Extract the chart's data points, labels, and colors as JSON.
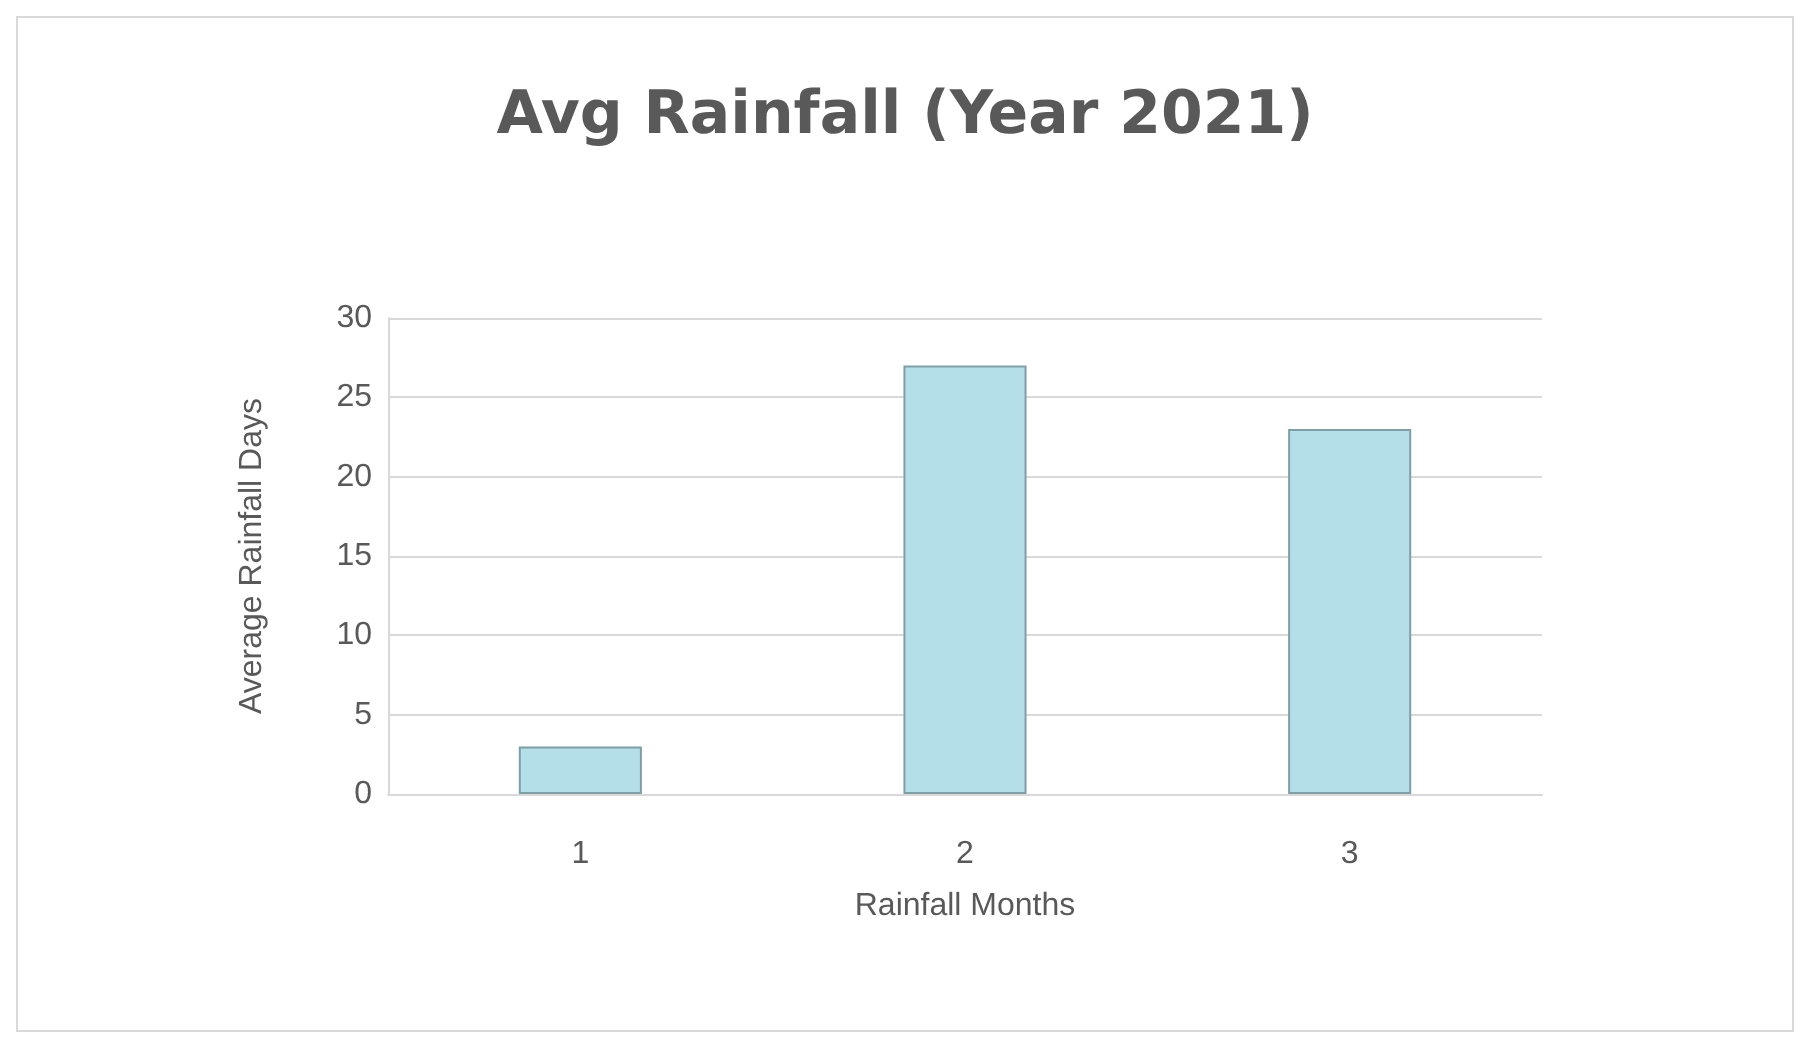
{
  "chart_data": {
    "type": "bar",
    "title": "Avg Rainfall (Year 2021)",
    "xlabel": "Rainfall Months",
    "ylabel": "Average Rainfall Days",
    "categories": [
      "1",
      "2",
      "3"
    ],
    "values": [
      3,
      27,
      23
    ],
    "color": "#b4dee8",
    "ylim": [
      0,
      30
    ],
    "yticks": [
      0,
      5,
      10,
      15,
      20,
      25,
      30
    ],
    "grid": "y"
  }
}
